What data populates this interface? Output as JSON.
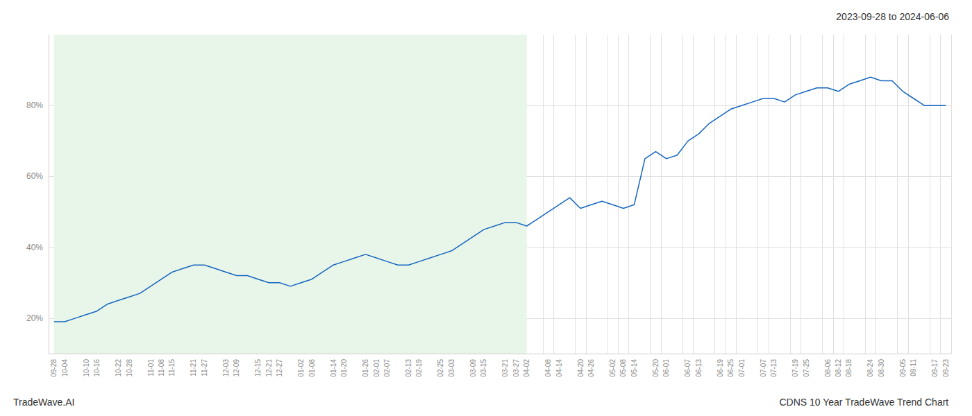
{
  "chart_data": {
    "type": "line",
    "title": "2023-09-28 to 2024-06-06",
    "annotations": [
      "TradeWave.AI",
      "CDNS 10 Year TradeWave Trend Chart"
    ],
    "categories": [
      "09-28",
      "10-04",
      null,
      "10-10",
      "10-16",
      null,
      "10-22",
      "10-28",
      null,
      "11-01",
      "11-08",
      "11-15",
      null,
      "11-21",
      "11-27",
      null,
      "12-03",
      "12-09",
      null,
      "12-15",
      "12-21",
      "12-27",
      null,
      "01-02",
      "01-08",
      null,
      "01-14",
      "01-20",
      null,
      "01-26",
      "02-01",
      "02-07",
      null,
      "02-13",
      "02-19",
      null,
      "02-25",
      "03-03",
      null,
      "03-09",
      "03-15",
      null,
      "03-21",
      "03-27",
      "04-02",
      null,
      "04-08",
      "04-14",
      null,
      "04-20",
      "04-26",
      null,
      "05-02",
      "05-08",
      "05-14",
      null,
      "05-20",
      "06-01",
      null,
      "06-07",
      "06-13",
      null,
      "06-19",
      "06-25",
      "07-01",
      null,
      "07-07",
      "07-13",
      null,
      "07-19",
      "07-25",
      null,
      "08-06",
      "08-12",
      "08-18",
      null,
      "08-24",
      "08-30",
      null,
      "09-05",
      "09-11",
      null,
      "09-17",
      "09-23"
    ],
    "values": [
      19,
      19,
      20,
      21,
      22,
      24,
      25,
      26,
      27,
      29,
      31,
      33,
      34,
      35,
      35,
      34,
      33,
      32,
      32,
      31,
      30,
      30,
      29,
      30,
      31,
      33,
      35,
      36,
      37,
      38,
      37,
      36,
      35,
      35,
      36,
      37,
      38,
      39,
      41,
      43,
      45,
      46,
      47,
      47,
      46,
      48,
      50,
      52,
      54,
      51,
      52,
      53,
      52,
      51,
      52,
      65,
      67,
      65,
      66,
      70,
      72,
      75,
      77,
      79,
      80,
      81,
      82,
      82,
      81,
      83,
      84,
      85,
      85,
      84,
      86,
      87,
      88,
      87,
      87,
      84,
      82,
      80,
      80,
      80
    ],
    "color": "#1565c0",
    "shaded_region": {
      "x": [
        0,
        44
      ],
      "color": "#e8f5e9"
    },
    "ylim": [
      10,
      100
    ],
    "yticks": [
      {
        "value": 20,
        "label": "20%"
      },
      {
        "value": 40,
        "label": "40%"
      },
      {
        "value": 60,
        "label": "60%"
      },
      {
        "value": 80,
        "label": "80%"
      }
    ],
    "grid": true
  }
}
